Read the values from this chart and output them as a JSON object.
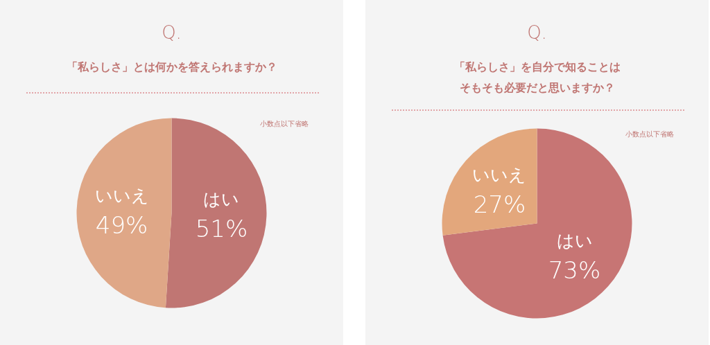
{
  "chart_data": [
    {
      "type": "pie",
      "title": "Q.",
      "subtitle": "「私らしさ」とは何かを答えられますか？",
      "categories": [
        "はい",
        "いいえ"
      ],
      "values": [
        51,
        49
      ],
      "colors": [
        "#c07673",
        "#dfa787"
      ],
      "value_labels": [
        "51%",
        "49%"
      ],
      "annotations": [
        "小数点以下省略"
      ]
    },
    {
      "type": "pie",
      "title": "Q.",
      "subtitle": "「私らしさ」を自分で知ることはそもそも必要だと思いますか？",
      "categories": [
        "はい",
        "いいえ"
      ],
      "values": [
        73,
        27
      ],
      "colors": [
        "#c77574",
        "#e3a77c"
      ],
      "value_labels": [
        "73%",
        "27%"
      ],
      "annotations": [
        "小数点以下省略"
      ]
    }
  ]
}
